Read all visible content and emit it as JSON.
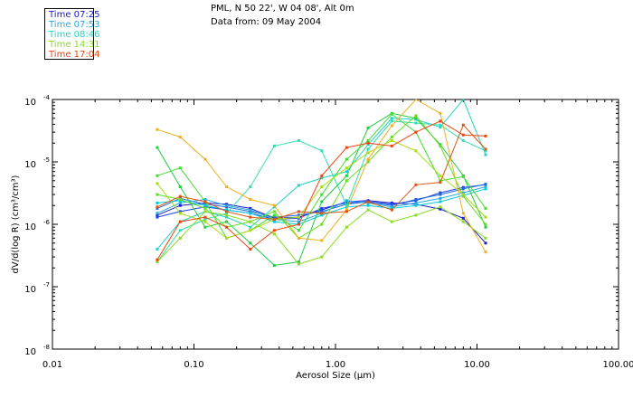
{
  "header": {
    "line1": "PML, N 50 22', W 04 08', Alt 0m",
    "line2": "Data from: 09 May 2004"
  },
  "chart_data": {
    "type": "line",
    "xscale": "log",
    "yscale": "log",
    "xlim": [
      0.01,
      100
    ],
    "ylim": [
      1e-08,
      0.0001
    ],
    "xlabel": "Aerosol Size (μm)",
    "ylabel": "dV/d(log R) (cm³/cm³)",
    "xtick_labels": [
      "0.01",
      "0.10",
      "1.00",
      "10.00",
      "100.00"
    ],
    "xtick_values": [
      0.01,
      0.1,
      1,
      10,
      100
    ],
    "ytick_base_labels": [
      "10",
      "10",
      "10",
      "10",
      "10"
    ],
    "ytick_exponents": [
      "-8",
      "-7",
      "-6",
      "-5",
      "-4"
    ],
    "ytick_values": [
      1e-08,
      1e-07,
      1e-06,
      1e-05,
      0.0001
    ],
    "x": [
      0.055,
      0.08,
      0.12,
      0.17,
      0.25,
      0.37,
      0.55,
      0.8,
      1.2,
      1.7,
      2.5,
      3.7,
      5.5,
      8.0,
      11.5
    ],
    "legend": [
      {
        "label": "Time 07:25",
        "color": "#1a1acc"
      },
      {
        "label": "Time 07:53",
        "color": "#2aa8e0"
      },
      {
        "label": "Time 08:46",
        "color": "#22d4c8"
      },
      {
        "label": "Time 14:31",
        "color": "#88dd22"
      },
      {
        "label": "Time 17:04",
        "color": "#ee4411"
      }
    ],
    "series": [
      {
        "name": "s1",
        "color": "#1a1acc",
        "values": [
          1.4e-06,
          2e-06,
          2.2e-06,
          2.1e-06,
          1.8e-06,
          1.25e-06,
          1.3e-06,
          1.7e-06,
          2.3e-06,
          2.4e-06,
          2.2e-06,
          2.1e-06,
          1.75e-06,
          1.25e-06,
          5e-07
        ]
      },
      {
        "name": "s2",
        "color": "#1a44ee",
        "values": [
          1.3e-06,
          1.6e-06,
          1.9e-06,
          1.7e-06,
          1.5e-06,
          1.2e-06,
          1.25e-06,
          1.8e-06,
          2.2e-06,
          2.3e-06,
          2.1e-06,
          2.4e-06,
          3.2e-06,
          3.9e-06,
          4.3e-06
        ]
      },
      {
        "name": "s3",
        "color": "#2266dd",
        "values": [
          1.8e-06,
          2.6e-06,
          2.1e-06,
          1.9e-06,
          1.6e-06,
          1.3e-06,
          1.4e-06,
          1.6e-06,
          2.1e-06,
          2.3e-06,
          2e-06,
          2.5e-06,
          3e-06,
          3.7e-06,
          4.4e-06
        ]
      },
      {
        "name": "s4",
        "color": "#2aa8e0",
        "values": [
          1.5e-06,
          2.2e-06,
          2.5e-06,
          2e-06,
          1.7e-06,
          1.2e-06,
          1.1e-06,
          1.5e-06,
          2.4e-06,
          2.2e-06,
          1.9e-06,
          2.2e-06,
          2.6e-06,
          3.2e-06,
          4e-06
        ]
      },
      {
        "name": "s5",
        "color": "#00ccdd",
        "values": [
          2.2e-06,
          2.4e-06,
          2e-06,
          1.7e-06,
          1.5e-06,
          1.1e-06,
          1e-06,
          1.4e-06,
          1.9e-06,
          2e-06,
          1.8e-06,
          2e-06,
          2.3e-06,
          2.9e-06,
          3.7e-06
        ]
      },
      {
        "name": "s6",
        "color": "#22d4c8",
        "values": [
          4e-07,
          1.1e-06,
          1.6e-06,
          1.3e-06,
          9e-07,
          1.9e-06,
          4.2e-06,
          5.5e-06,
          7e-06,
          1.9e-05,
          5e-05,
          4.8e-05,
          3.6e-05,
          0.0001,
          1.3e-05
        ]
      },
      {
        "name": "s7",
        "color": "#33e0b0",
        "values": [
          2.5e-07,
          8e-07,
          1.2e-06,
          1.5e-06,
          4e-06,
          1.8e-05,
          2.2e-05,
          1.5e-05,
          2e-06,
          1.6e-05,
          4.5e-05,
          4.2e-05,
          3.9e-05,
          2.2e-05,
          1.5e-05
        ]
      },
      {
        "name": "s8",
        "color": "#22cc44",
        "values": [
          1.7e-05,
          4e-06,
          9e-07,
          1.1e-06,
          5e-07,
          2.2e-07,
          2.5e-07,
          2.3e-06,
          6e-06,
          3.5e-05,
          6e-05,
          5e-05,
          1.9e-05,
          6e-06,
          9e-07
        ]
      },
      {
        "name": "s9",
        "color": "#44dd33",
        "values": [
          6e-06,
          8e-06,
          2.3e-06,
          6e-07,
          8e-07,
          1.4e-06,
          8e-07,
          3e-06,
          1.1e-05,
          2.2e-05,
          5.8e-05,
          3e-05,
          5e-06,
          5.8e-06,
          1.8e-06
        ]
      },
      {
        "name": "s10",
        "color": "#66dd22",
        "values": [
          3e-06,
          2.5e-06,
          1.8e-06,
          9e-07,
          1.1e-06,
          1.6e-06,
          6e-07,
          1e-06,
          5e-06,
          1e-05,
          2.5e-05,
          5.5e-05,
          1.8e-05,
          2.8e-06,
          1e-06
        ]
      },
      {
        "name": "s11",
        "color": "#88dd22",
        "values": [
          2.5e-07,
          6e-07,
          1.6e-06,
          1.4e-06,
          1.1e-06,
          7e-07,
          2.3e-07,
          3e-07,
          9e-07,
          1.7e-06,
          1.1e-06,
          1.4e-06,
          1.9e-06,
          1.1e-06,
          6e-07
        ]
      },
      {
        "name": "s12",
        "color": "#aadd11",
        "values": [
          4.5e-06,
          1.5e-06,
          1.1e-06,
          6e-07,
          8e-07,
          1.2e-06,
          1.3e-06,
          4e-06,
          8e-06,
          1.4e-05,
          2.2e-05,
          1.5e-05,
          6e-06,
          3e-06,
          1.3e-06
        ]
      },
      {
        "name": "s13",
        "color": "#f0b020",
        "values": [
          3.3e-05,
          2.5e-05,
          1.1e-05,
          4e-06,
          2.5e-06,
          2e-06,
          6e-07,
          5.5e-07,
          1.7e-06,
          1.1e-05,
          3.8e-05,
          0.000105,
          6e-05,
          1.5e-06,
          3.6e-07
        ]
      },
      {
        "name": "s14",
        "color": "#ee4411",
        "values": [
          2.7e-07,
          1.1e-06,
          1.3e-06,
          9e-07,
          4e-07,
          8e-07,
          1e-06,
          6e-06,
          1.7e-05,
          2e-05,
          1.8e-05,
          3e-05,
          4.5e-05,
          2.7e-05,
          2.6e-05
        ]
      },
      {
        "name": "s15",
        "color": "#dd5511",
        "values": [
          1.9e-06,
          2.8e-06,
          2.3e-06,
          1.6e-06,
          1.3e-06,
          1.2e-06,
          1.6e-06,
          1.5e-06,
          1.6e-06,
          2.3e-06,
          1.7e-06,
          4.3e-06,
          4.7e-06,
          3.9e-05,
          1.6e-05
        ]
      }
    ]
  }
}
